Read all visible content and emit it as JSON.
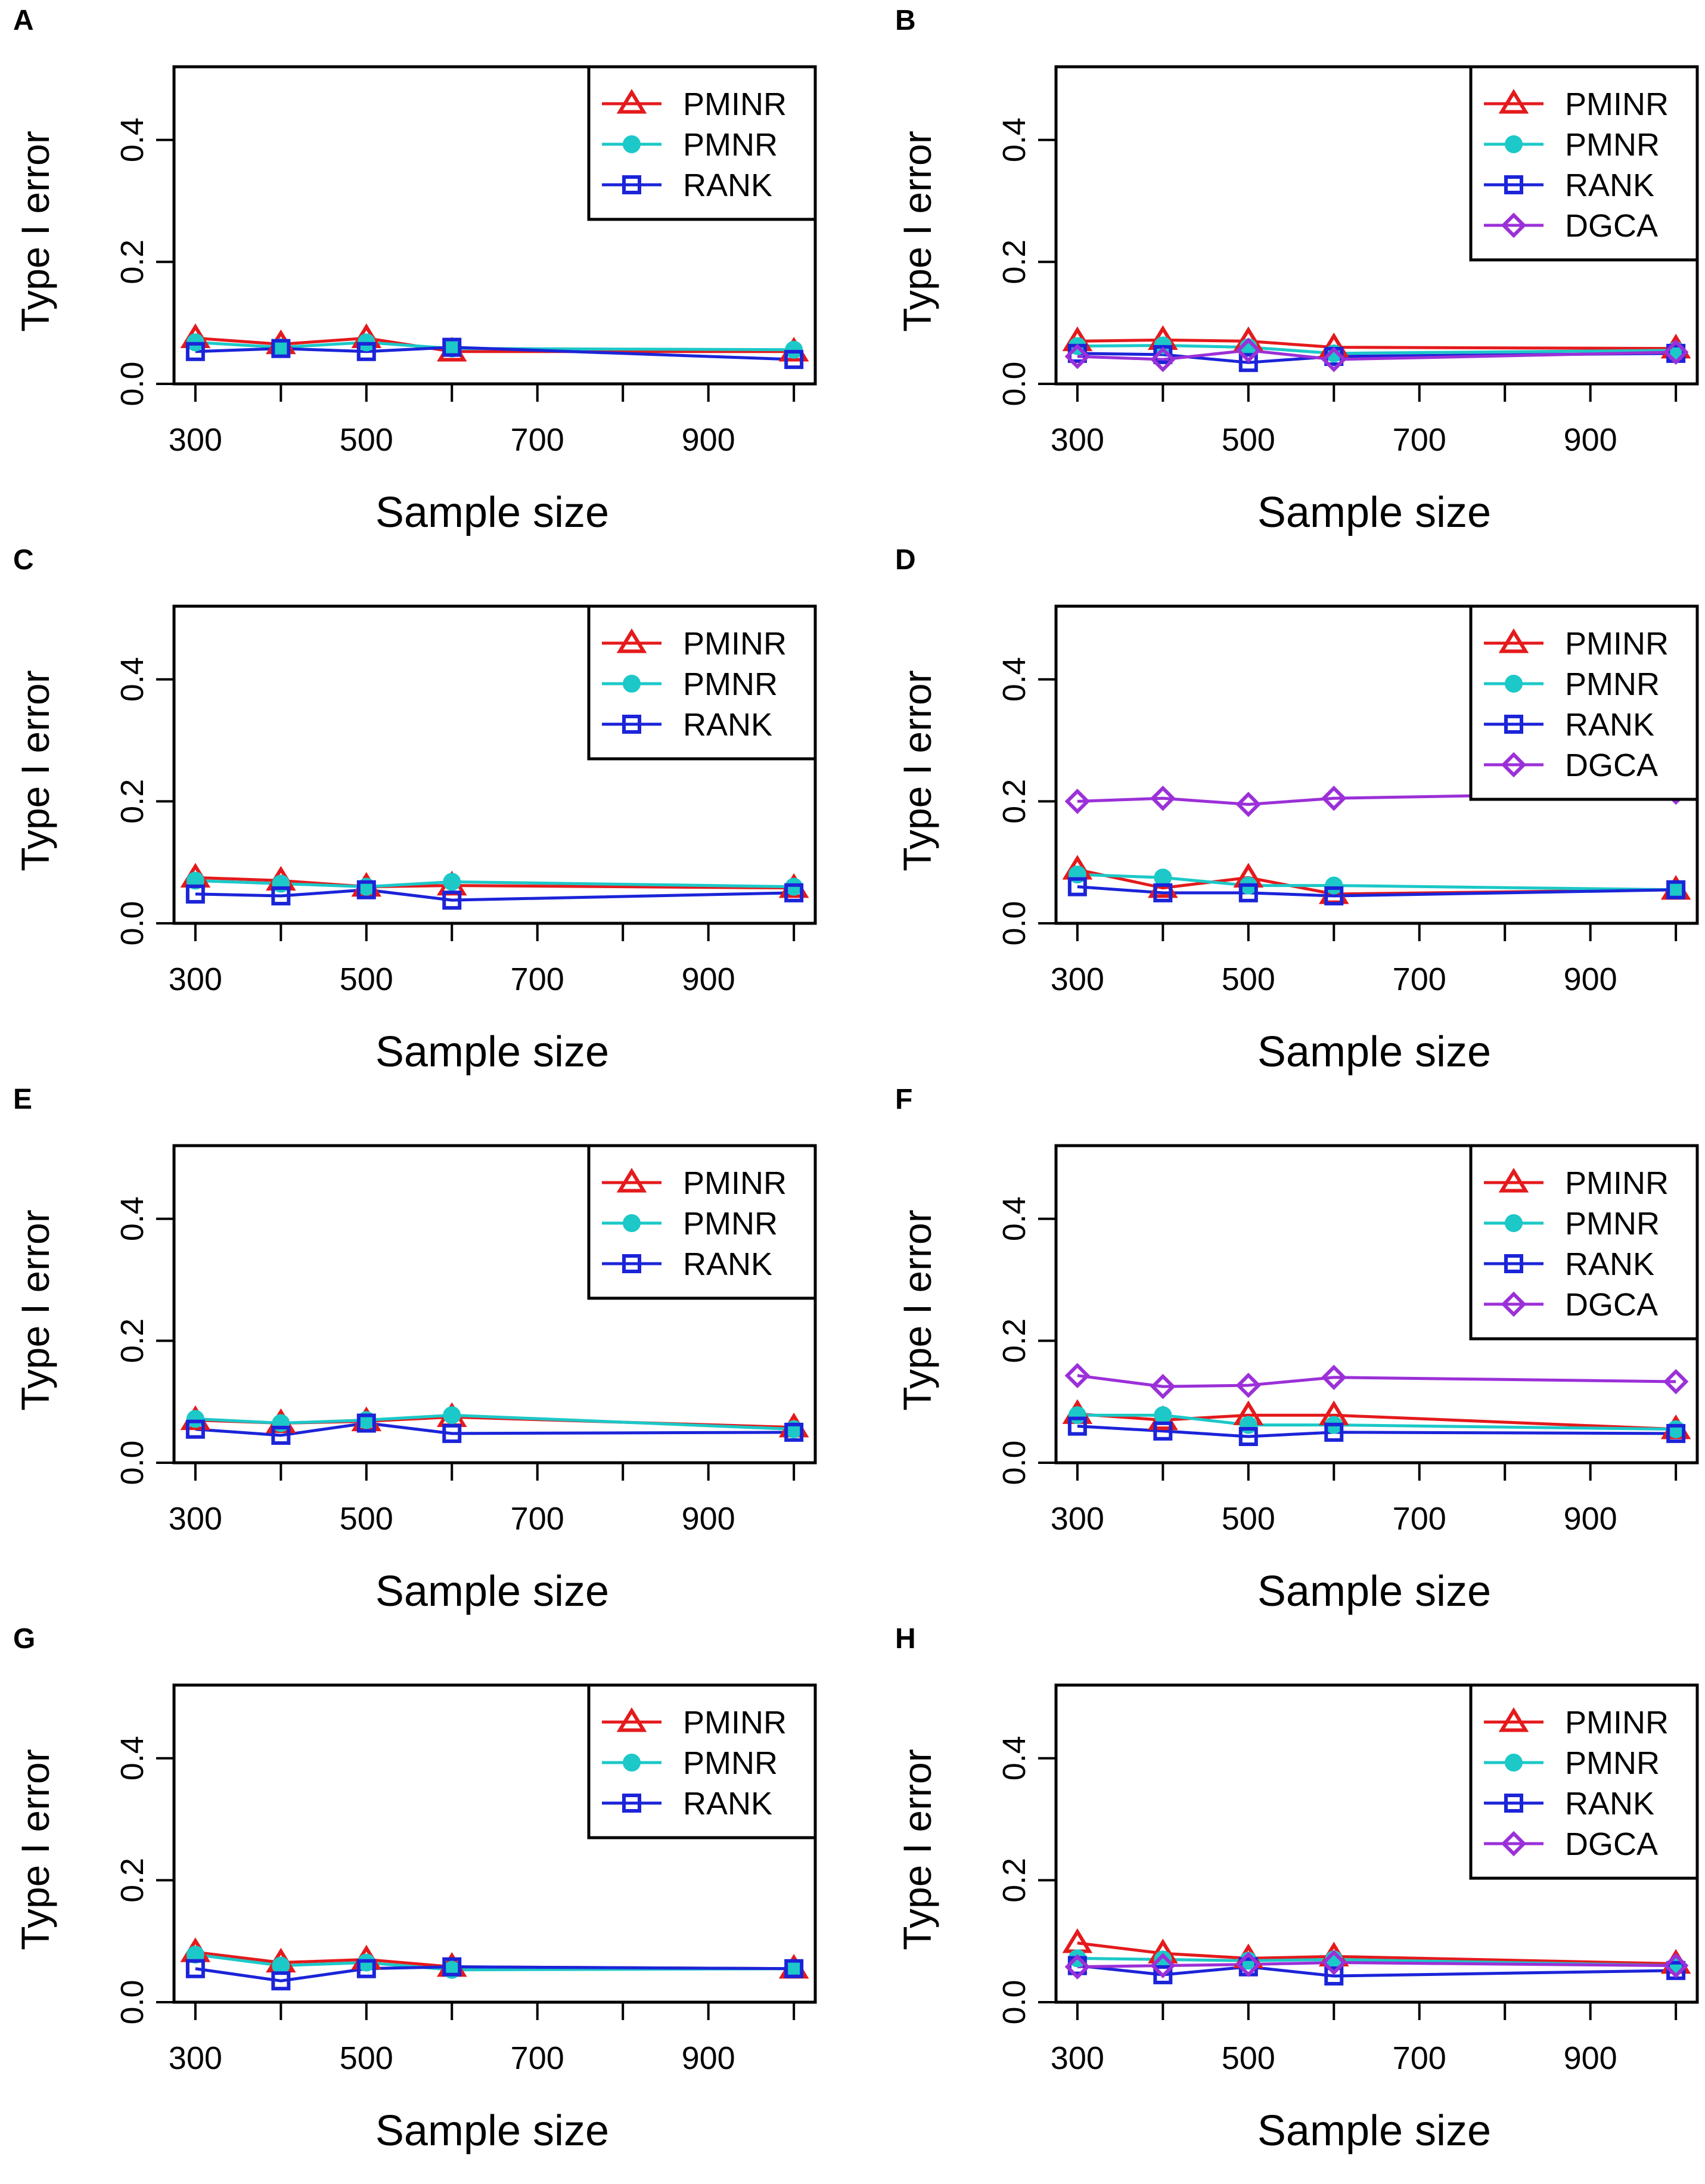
{
  "figure": {
    "x_ticks": [
      300,
      500,
      700,
      900
    ],
    "y_ticks": [
      0.0,
      0.2,
      0.4
    ],
    "y_tick_labels": [
      "0.0",
      "0.2",
      "0.4"
    ],
    "xlim": [
      275,
      1025
    ],
    "ylim": [
      0.0,
      0.52
    ]
  },
  "series_styles": {
    "PMINR": {
      "color": "#E41A1C",
      "marker": "triangle"
    },
    "PMNR": {
      "color": "#1CC8C8",
      "marker": "circle"
    },
    "RANK": {
      "color": "#1B24D8",
      "marker": "square"
    },
    "DGCA": {
      "color": "#9B30D8",
      "marker": "diamond"
    }
  },
  "chart_data": [
    {
      "panel": "A",
      "type": "line",
      "xlabel": "Sample size",
      "ylabel": "Type I error",
      "x": [
        300,
        400,
        500,
        600,
        1000
      ],
      "series": [
        {
          "name": "PMINR",
          "values": [
            0.075,
            0.065,
            0.075,
            0.053,
            0.053
          ]
        },
        {
          "name": "PMNR",
          "values": [
            0.068,
            0.06,
            0.068,
            0.058,
            0.056
          ]
        },
        {
          "name": "RANK",
          "values": [
            0.053,
            0.058,
            0.053,
            0.06,
            0.04
          ]
        }
      ]
    },
    {
      "panel": "B",
      "type": "line",
      "xlabel": "Sample size",
      "ylabel": "Type I error",
      "x": [
        300,
        400,
        500,
        600,
        1000
      ],
      "series": [
        {
          "name": "PMINR",
          "values": [
            0.07,
            0.072,
            0.07,
            0.06,
            0.058
          ]
        },
        {
          "name": "PMNR",
          "values": [
            0.062,
            0.063,
            0.06,
            0.05,
            0.055
          ]
        },
        {
          "name": "RANK",
          "values": [
            0.05,
            0.048,
            0.035,
            0.045,
            0.05
          ]
        },
        {
          "name": "DGCA",
          "values": [
            0.045,
            0.04,
            0.055,
            0.04,
            0.052
          ]
        }
      ]
    },
    {
      "panel": "C",
      "type": "line",
      "xlabel": "Sample size",
      "ylabel": "Type I error",
      "x": [
        300,
        400,
        500,
        600,
        1000
      ],
      "series": [
        {
          "name": "PMINR",
          "values": [
            0.075,
            0.07,
            0.06,
            0.062,
            0.058
          ]
        },
        {
          "name": "PMNR",
          "values": [
            0.07,
            0.065,
            0.06,
            0.068,
            0.06
          ]
        },
        {
          "name": "RANK",
          "values": [
            0.048,
            0.045,
            0.055,
            0.038,
            0.05
          ]
        }
      ]
    },
    {
      "panel": "D",
      "type": "line",
      "xlabel": "Sample size",
      "ylabel": "Type I error",
      "x": [
        300,
        400,
        500,
        600,
        1000
      ],
      "series": [
        {
          "name": "PMINR",
          "values": [
            0.088,
            0.058,
            0.075,
            0.048,
            0.055
          ]
        },
        {
          "name": "PMNR",
          "values": [
            0.08,
            0.075,
            0.062,
            0.062,
            0.055
          ]
        },
        {
          "name": "RANK",
          "values": [
            0.06,
            0.05,
            0.05,
            0.045,
            0.055
          ]
        },
        {
          "name": "DGCA",
          "values": [
            0.2,
            0.205,
            0.195,
            0.205,
            0.215
          ]
        }
      ]
    },
    {
      "panel": "E",
      "type": "line",
      "xlabel": "Sample size",
      "ylabel": "Type I error",
      "x": [
        300,
        400,
        500,
        600,
        1000
      ],
      "series": [
        {
          "name": "PMINR",
          "values": [
            0.07,
            0.065,
            0.068,
            0.075,
            0.058
          ]
        },
        {
          "name": "PMNR",
          "values": [
            0.072,
            0.065,
            0.07,
            0.078,
            0.055
          ]
        },
        {
          "name": "RANK",
          "values": [
            0.055,
            0.045,
            0.065,
            0.048,
            0.05
          ]
        }
      ]
    },
    {
      "panel": "F",
      "type": "line",
      "xlabel": "Sample size",
      "ylabel": "Type I error",
      "x": [
        300,
        400,
        500,
        600,
        1000
      ],
      "series": [
        {
          "name": "PMINR",
          "values": [
            0.08,
            0.07,
            0.078,
            0.078,
            0.055
          ]
        },
        {
          "name": "PMNR",
          "values": [
            0.078,
            0.078,
            0.062,
            0.062,
            0.055
          ]
        },
        {
          "name": "RANK",
          "values": [
            0.06,
            0.052,
            0.043,
            0.05,
            0.048
          ]
        },
        {
          "name": "DGCA",
          "values": [
            0.143,
            0.125,
            0.127,
            0.14,
            0.133
          ]
        }
      ]
    },
    {
      "panel": "G",
      "type": "line",
      "xlabel": "Sample size",
      "ylabel": "Type I error",
      "x": [
        300,
        400,
        500,
        600,
        1000
      ],
      "series": [
        {
          "name": "PMINR",
          "values": [
            0.082,
            0.065,
            0.07,
            0.058,
            0.055
          ]
        },
        {
          "name": "PMNR",
          "values": [
            0.078,
            0.06,
            0.065,
            0.053,
            0.055
          ]
        },
        {
          "name": "RANK",
          "values": [
            0.055,
            0.035,
            0.055,
            0.058,
            0.055
          ]
        }
      ]
    },
    {
      "panel": "H",
      "type": "line",
      "xlabel": "Sample size",
      "ylabel": "Type I error",
      "x": [
        300,
        400,
        500,
        600,
        1000
      ],
      "series": [
        {
          "name": "PMINR",
          "values": [
            0.097,
            0.08,
            0.072,
            0.075,
            0.063
          ]
        },
        {
          "name": "PMNR",
          "values": [
            0.072,
            0.07,
            0.068,
            0.07,
            0.06
          ]
        },
        {
          "name": "RANK",
          "values": [
            0.06,
            0.045,
            0.058,
            0.043,
            0.052
          ]
        },
        {
          "name": "DGCA",
          "values": [
            0.058,
            0.06,
            0.062,
            0.065,
            0.06
          ]
        }
      ]
    }
  ]
}
